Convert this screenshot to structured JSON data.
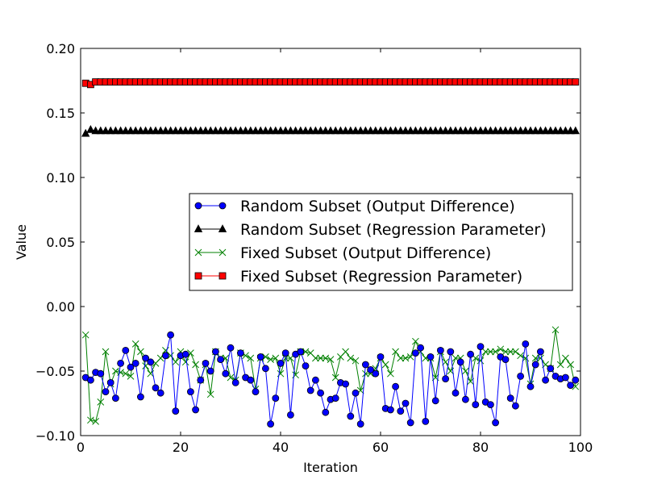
{
  "chart_data": {
    "type": "line",
    "title": "",
    "xlabel": "Iteration",
    "ylabel": "Value",
    "xlim": [
      0,
      100
    ],
    "ylim": [
      -0.1,
      0.2
    ],
    "xticks": [
      0,
      20,
      40,
      60,
      80,
      100
    ],
    "xtick_labels": [
      "0",
      "20",
      "40",
      "60",
      "80",
      "100"
    ],
    "yticks": [
      -0.1,
      -0.05,
      0.0,
      0.05,
      0.1,
      0.15,
      0.2
    ],
    "ytick_labels": [
      "−0.10",
      "−0.05",
      "0.00",
      "0.05",
      "0.10",
      "0.15",
      "0.20"
    ],
    "grid": false,
    "legend_position": "center-right",
    "x": [
      1,
      2,
      3,
      4,
      5,
      6,
      7,
      8,
      9,
      10,
      11,
      12,
      13,
      14,
      15,
      16,
      17,
      18,
      19,
      20,
      21,
      22,
      23,
      24,
      25,
      26,
      27,
      28,
      29,
      30,
      31,
      32,
      33,
      34,
      35,
      36,
      37,
      38,
      39,
      40,
      41,
      42,
      43,
      44,
      45,
      46,
      47,
      48,
      49,
      50,
      51,
      52,
      53,
      54,
      55,
      56,
      57,
      58,
      59,
      60,
      61,
      62,
      63,
      64,
      65,
      66,
      67,
      68,
      69,
      70,
      71,
      72,
      73,
      74,
      75,
      76,
      77,
      78,
      79,
      80,
      81,
      82,
      83,
      84,
      85,
      86,
      87,
      88,
      89,
      90,
      91,
      92,
      93,
      94,
      95,
      96,
      97,
      98,
      99
    ],
    "series": [
      {
        "name": "Random Subset (Output Difference)",
        "color": "#0000ff",
        "marker": "circle",
        "values": [
          -0.055,
          -0.057,
          -0.051,
          -0.052,
          -0.066,
          -0.059,
          -0.071,
          -0.044,
          -0.034,
          -0.047,
          -0.044,
          -0.07,
          -0.04,
          -0.043,
          -0.063,
          -0.067,
          -0.038,
          -0.022,
          -0.081,
          -0.038,
          -0.037,
          -0.066,
          -0.08,
          -0.057,
          -0.044,
          -0.05,
          -0.035,
          -0.041,
          -0.052,
          -0.032,
          -0.059,
          -0.036,
          -0.055,
          -0.057,
          -0.066,
          -0.039,
          -0.048,
          -0.091,
          -0.071,
          -0.044,
          -0.036,
          -0.084,
          -0.037,
          -0.035,
          -0.046,
          -0.065,
          -0.057,
          -0.067,
          -0.082,
          -0.072,
          -0.071,
          -0.059,
          -0.06,
          -0.085,
          -0.067,
          -0.091,
          -0.045,
          -0.049,
          -0.052,
          -0.039,
          -0.079,
          -0.08,
          -0.062,
          -0.081,
          -0.075,
          -0.09,
          -0.036,
          -0.032,
          -0.089,
          -0.039,
          -0.073,
          -0.034,
          -0.056,
          -0.035,
          -0.067,
          -0.043,
          -0.072,
          -0.037,
          -0.076,
          -0.031,
          -0.074,
          -0.076,
          -0.09,
          -0.039,
          -0.041,
          -0.071,
          -0.077,
          -0.054,
          -0.029,
          -0.062,
          -0.045,
          -0.035,
          -0.057,
          -0.048,
          -0.054,
          -0.056,
          -0.055,
          -0.061,
          -0.057
        ]
      },
      {
        "name": "Random Subset (Regression Parameter)",
        "color": "#000000",
        "marker": "triangle",
        "values": [
          0.134,
          0.137,
          0.136,
          0.136,
          0.136,
          0.136,
          0.136,
          0.136,
          0.136,
          0.136,
          0.136,
          0.136,
          0.136,
          0.136,
          0.136,
          0.136,
          0.136,
          0.136,
          0.136,
          0.136,
          0.136,
          0.136,
          0.136,
          0.136,
          0.136,
          0.136,
          0.136,
          0.136,
          0.136,
          0.136,
          0.136,
          0.136,
          0.136,
          0.136,
          0.136,
          0.136,
          0.136,
          0.136,
          0.136,
          0.136,
          0.136,
          0.136,
          0.136,
          0.136,
          0.136,
          0.136,
          0.136,
          0.136,
          0.136,
          0.136,
          0.136,
          0.136,
          0.136,
          0.136,
          0.136,
          0.136,
          0.136,
          0.136,
          0.136,
          0.136,
          0.136,
          0.136,
          0.136,
          0.136,
          0.136,
          0.136,
          0.136,
          0.136,
          0.136,
          0.136,
          0.136,
          0.136,
          0.136,
          0.136,
          0.136,
          0.136,
          0.136,
          0.136,
          0.136,
          0.136,
          0.136,
          0.136,
          0.136,
          0.136,
          0.136,
          0.136,
          0.136,
          0.136,
          0.136,
          0.136,
          0.136,
          0.136,
          0.136,
          0.136,
          0.136,
          0.136,
          0.136,
          0.136,
          0.136
        ]
      },
      {
        "name": "Fixed Subset (Output Difference)",
        "color": "#008000",
        "marker": "x",
        "values": [
          -0.022,
          -0.088,
          -0.089,
          -0.074,
          -0.035,
          -0.06,
          -0.05,
          -0.051,
          -0.052,
          -0.054,
          -0.029,
          -0.035,
          -0.046,
          -0.052,
          -0.044,
          -0.04,
          -0.034,
          -0.038,
          -0.043,
          -0.035,
          -0.043,
          -0.036,
          -0.045,
          -0.057,
          -0.045,
          -0.068,
          -0.035,
          -0.04,
          -0.04,
          -0.055,
          -0.057,
          -0.036,
          -0.038,
          -0.04,
          -0.064,
          -0.04,
          -0.039,
          -0.041,
          -0.04,
          -0.052,
          -0.04,
          -0.04,
          -0.053,
          -0.035,
          -0.035,
          -0.036,
          -0.04,
          -0.04,
          -0.04,
          -0.041,
          -0.055,
          -0.039,
          -0.035,
          -0.04,
          -0.042,
          -0.065,
          -0.052,
          -0.052,
          -0.048,
          -0.04,
          -0.045,
          -0.052,
          -0.035,
          -0.04,
          -0.04,
          -0.039,
          -0.027,
          -0.035,
          -0.04,
          -0.04,
          -0.055,
          -0.035,
          -0.043,
          -0.05,
          -0.04,
          -0.04,
          -0.05,
          -0.058,
          -0.04,
          -0.042,
          -0.035,
          -0.035,
          -0.035,
          -0.033,
          -0.035,
          -0.035,
          -0.035,
          -0.038,
          -0.04,
          -0.06,
          -0.04,
          -0.04,
          -0.045,
          -0.048,
          -0.018,
          -0.045,
          -0.04,
          -0.045,
          -0.062
        ]
      },
      {
        "name": "Fixed Subset (Regression Parameter)",
        "color": "#ff0000",
        "marker": "square",
        "values": [
          0.173,
          0.172,
          0.174,
          0.174,
          0.174,
          0.174,
          0.174,
          0.174,
          0.174,
          0.174,
          0.174,
          0.174,
          0.174,
          0.174,
          0.174,
          0.174,
          0.174,
          0.174,
          0.174,
          0.174,
          0.174,
          0.174,
          0.174,
          0.174,
          0.174,
          0.174,
          0.174,
          0.174,
          0.174,
          0.174,
          0.174,
          0.174,
          0.174,
          0.174,
          0.174,
          0.174,
          0.174,
          0.174,
          0.174,
          0.174,
          0.174,
          0.174,
          0.174,
          0.174,
          0.174,
          0.174,
          0.174,
          0.174,
          0.174,
          0.174,
          0.174,
          0.174,
          0.174,
          0.174,
          0.174,
          0.174,
          0.174,
          0.174,
          0.174,
          0.174,
          0.174,
          0.174,
          0.174,
          0.174,
          0.174,
          0.174,
          0.174,
          0.174,
          0.174,
          0.174,
          0.174,
          0.174,
          0.174,
          0.174,
          0.174,
          0.174,
          0.174,
          0.174,
          0.174,
          0.174,
          0.174,
          0.174,
          0.174,
          0.174,
          0.174,
          0.174,
          0.174,
          0.174,
          0.174,
          0.174,
          0.174,
          0.174,
          0.174,
          0.174,
          0.174,
          0.174,
          0.174,
          0.174,
          0.174
        ]
      }
    ]
  }
}
